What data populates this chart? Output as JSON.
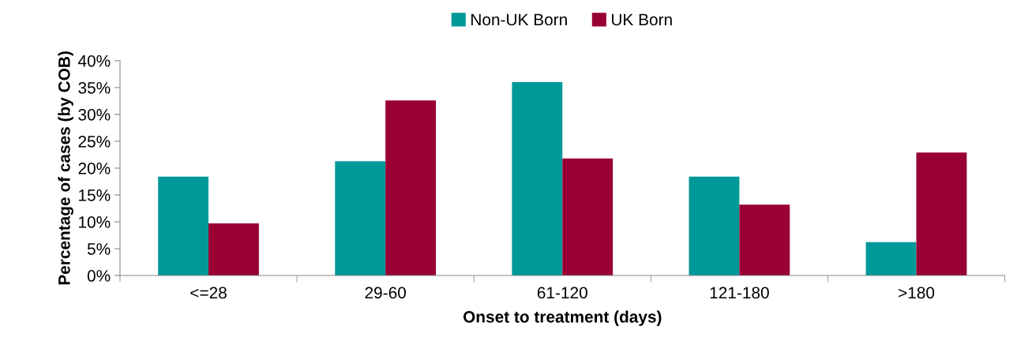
{
  "chart_data": {
    "type": "bar",
    "xlabel": "Onset to treatment (days)",
    "ylabel": "Percentage of cases (by COB)",
    "categories": [
      "<=28",
      "29-60",
      "61-120",
      "121-180",
      ">180"
    ],
    "series": [
      {
        "name": "Non-UK Born",
        "color": "#009999",
        "values": [
          18.4,
          21.3,
          36.0,
          18.4,
          6.2
        ]
      },
      {
        "name": "UK Born",
        "color": "#990033",
        "values": [
          9.7,
          32.6,
          21.8,
          13.2,
          22.9
        ]
      }
    ],
    "ylim": [
      0,
      40
    ],
    "yticks": [
      {
        "value": 0,
        "label": "0%"
      },
      {
        "value": 5,
        "label": "5%"
      },
      {
        "value": 10,
        "label": "10%"
      },
      {
        "value": 15,
        "label": "15%"
      },
      {
        "value": 20,
        "label": "20%"
      },
      {
        "value": 25,
        "label": "25%"
      },
      {
        "value": 30,
        "label": "30%"
      },
      {
        "value": 35,
        "label": "35%"
      },
      {
        "value": 40,
        "label": "40%"
      }
    ],
    "grid": false,
    "legend": "top"
  }
}
